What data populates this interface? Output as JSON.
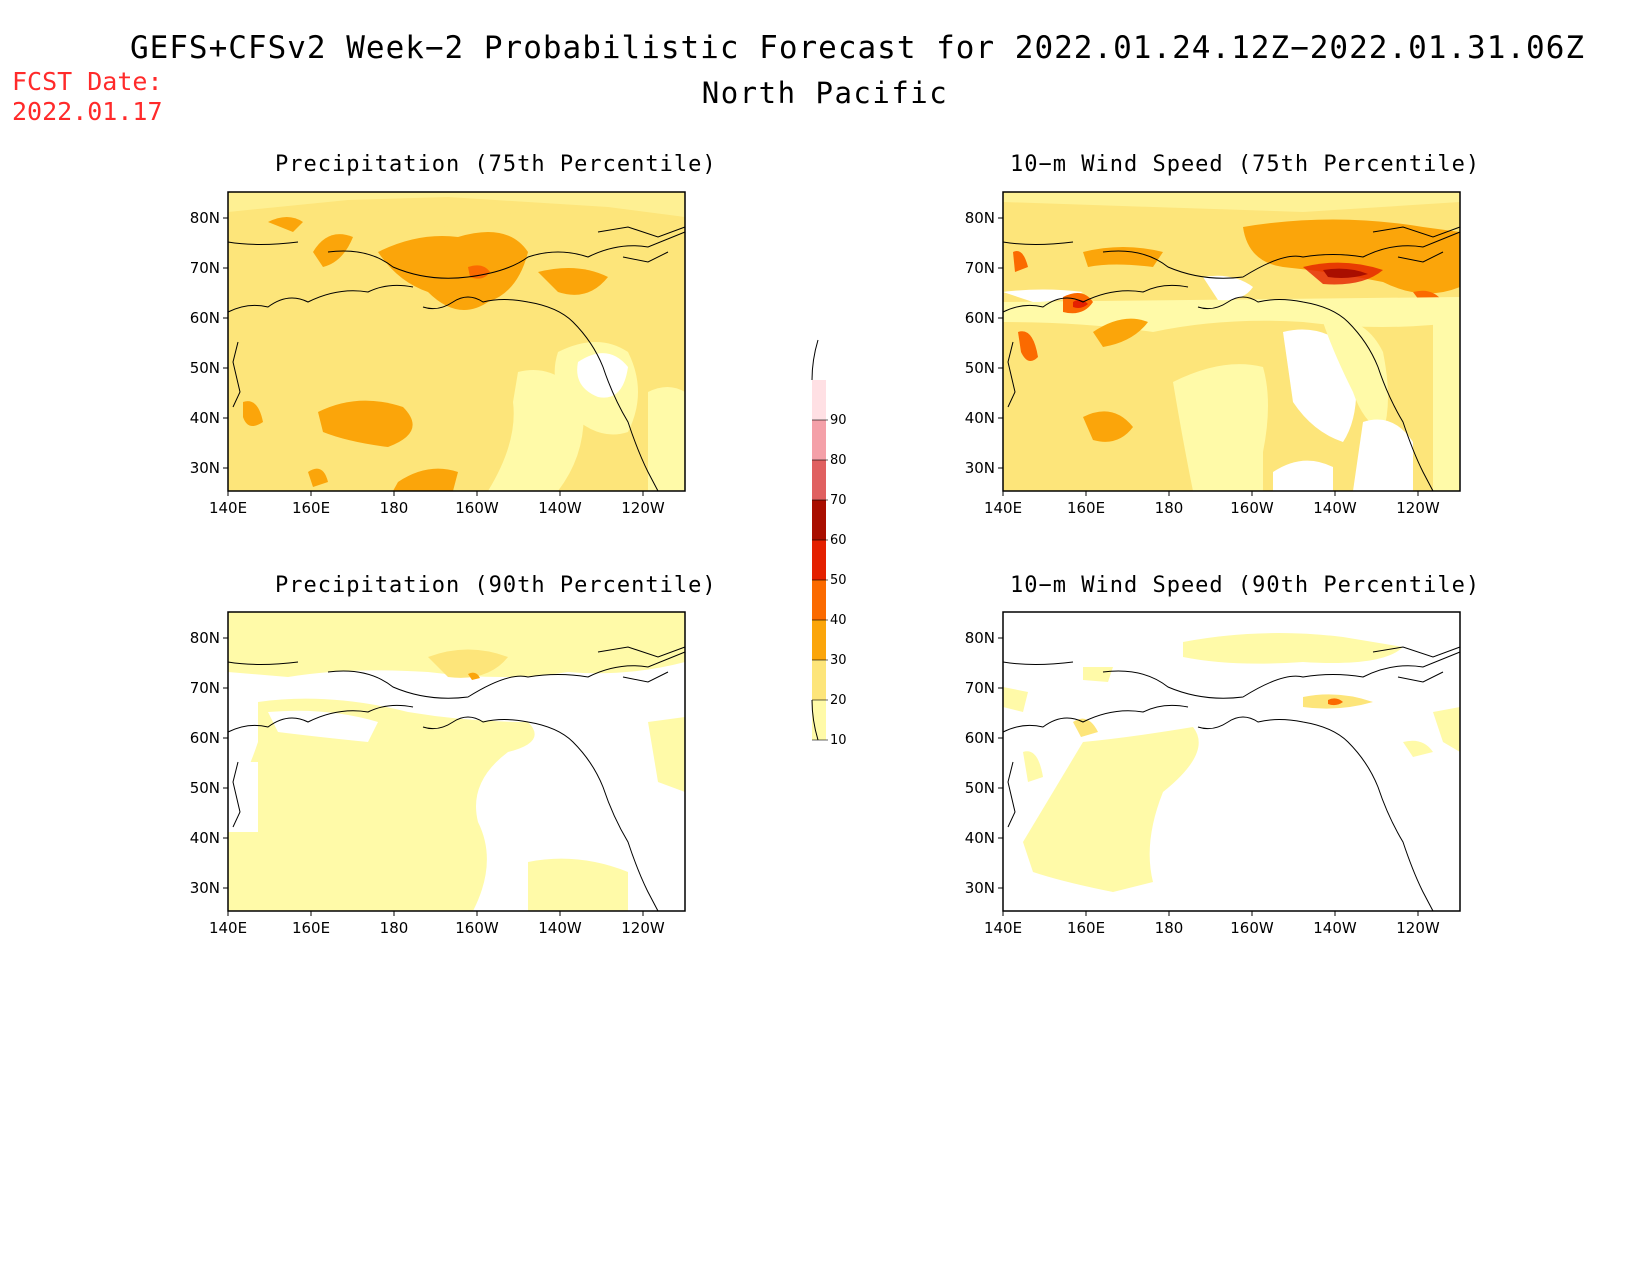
{
  "title": "GEFS+CFSv2 Week−2 Probabilistic Forecast for 2022.01.24.12Z−2022.01.31.06Z",
  "subtitle": "North Pacific",
  "fcst_date": {
    "label": "FCST Date:",
    "value": "2022.01.17"
  },
  "panels": [
    {
      "title": "Precipitation (75th Percentile)"
    },
    {
      "title": "10−m Wind Speed (75th Percentile)"
    },
    {
      "title": "Precipitation (90th Percentile)"
    },
    {
      "title": "10−m Wind Speed (90th Percentile)"
    }
  ],
  "axes": {
    "lat_labels": [
      "80N",
      "70N",
      "60N",
      "50N",
      "40N",
      "30N"
    ],
    "lat_values": [
      80,
      70,
      60,
      50,
      40,
      30
    ],
    "lon_labels": [
      "140E",
      "160E",
      "180",
      "160W",
      "140W",
      "120W"
    ],
    "lon_values": [
      140,
      160,
      180,
      200,
      220,
      240
    ],
    "lon_range": [
      140,
      250
    ],
    "lat_range": [
      25,
      85
    ]
  },
  "legend": {
    "levels": [
      "10",
      "20",
      "30",
      "40",
      "50",
      "60",
      "70",
      "80",
      "90"
    ],
    "colors": [
      "#fffaa8",
      "#fde57a",
      "#fba50a",
      "#fb6a00",
      "#e42000",
      "#a90e00",
      "#e06060",
      "#f4a0a8",
      "#ffe0e4"
    ]
  }
}
